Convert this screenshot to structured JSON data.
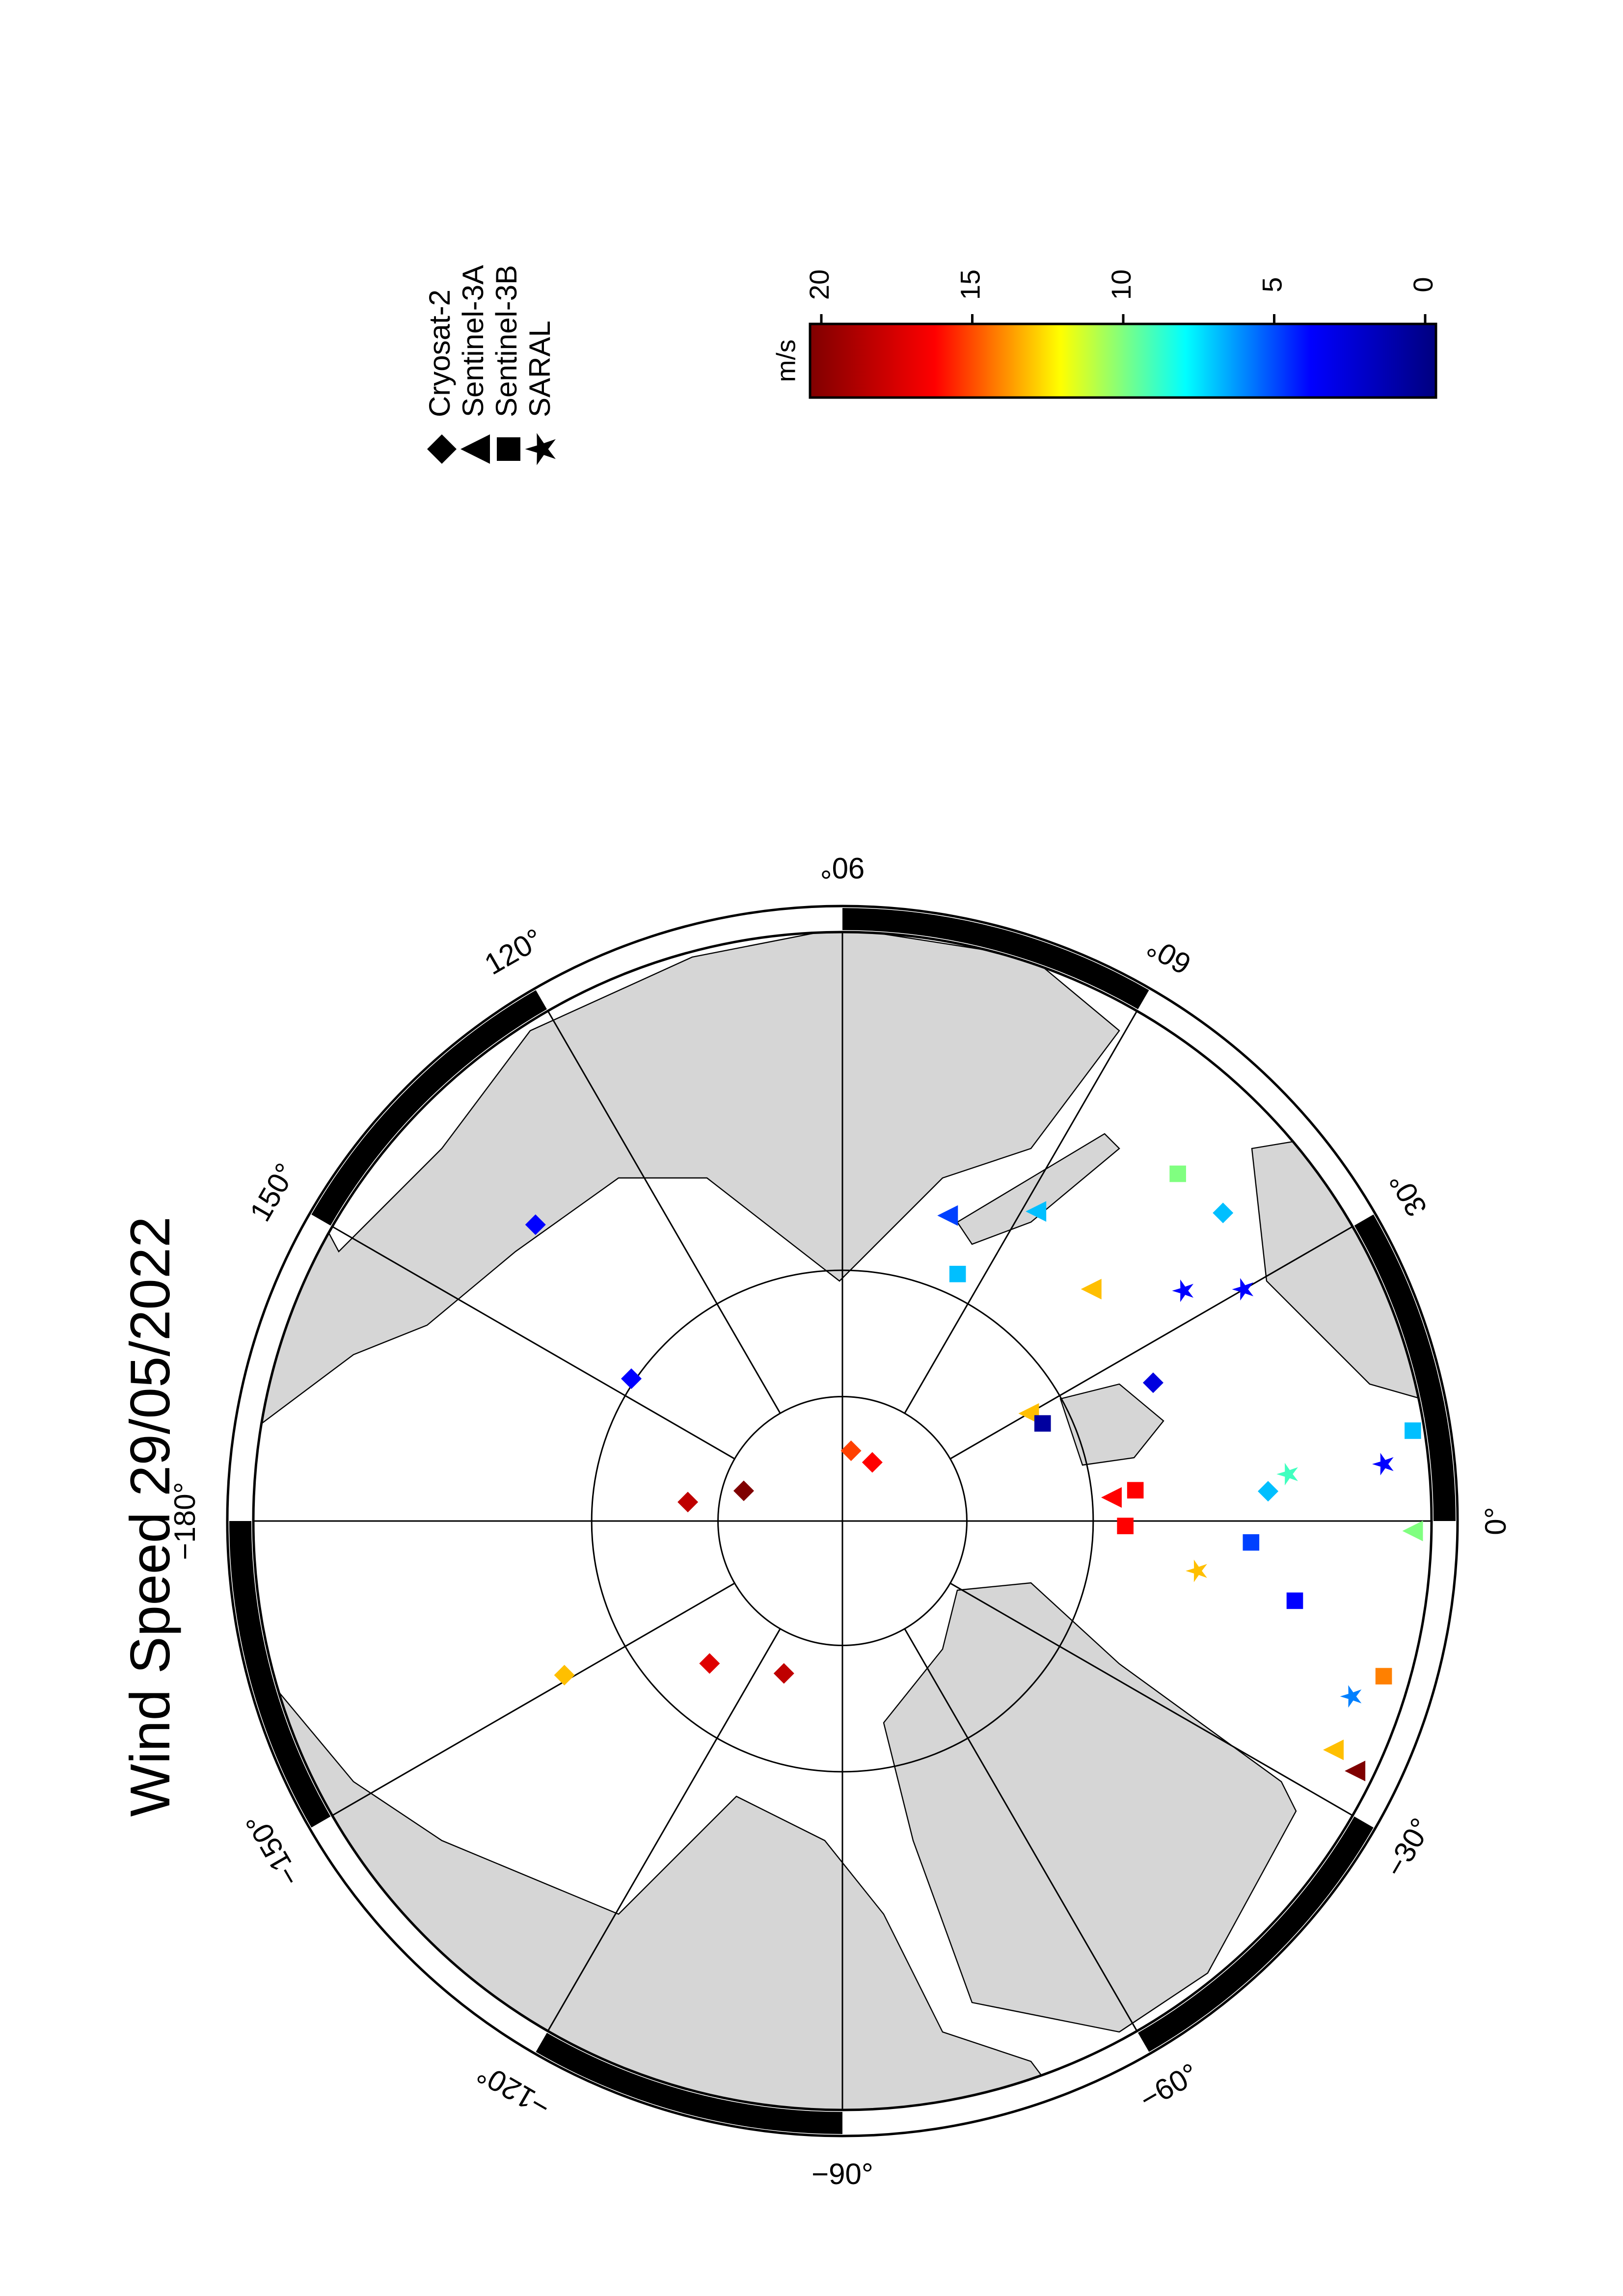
{
  "chart_data": {
    "type": "polar-map",
    "title": "Wind Speed 29/05/2022",
    "lat_min": 45,
    "parallels": [
      70,
      80
    ],
    "meridians": [
      {
        "value": 90,
        "label": "90°"
      },
      {
        "value": 60,
        "label": "60°"
      },
      {
        "value": 30,
        "label": "30°"
      },
      {
        "value": 0,
        "label": "0°"
      },
      {
        "value": -30,
        "label": "−30°"
      },
      {
        "value": -60,
        "label": "−60°"
      },
      {
        "value": -90,
        "label": "−90°"
      },
      {
        "value": -120,
        "label": "−120°"
      },
      {
        "value": -150,
        "label": "−150°"
      },
      {
        "value": -180,
        "label": "−180°"
      },
      {
        "value": 150,
        "label": "150°"
      },
      {
        "value": 120,
        "label": "120°"
      }
    ],
    "colorbar_label": "m/s",
    "clim": [
      0,
      20
    ],
    "cticks": [
      0,
      5,
      10,
      15,
      20
    ],
    "colormap": [
      "#00007f",
      "#0000ff",
      "#00ffff",
      "#ffff00",
      "#ff0000",
      "#7f0000"
    ],
    "series": [
      {
        "name": "Cryosat-2",
        "marker": "diamond",
        "lon": [
          163,
          173,
          83,
          63,
          -111,
          -133,
          -151,
          146,
          136,
          24,
          4,
          39
        ],
        "lat": [
          81.7,
          77.5,
          84.3,
          84.7,
          76.9,
          74.4,
          64.8,
          69.7,
          56.6,
          63.1,
          56.6,
          52
        ],
        "values": [
          20,
          18,
          15,
          16,
          18,
          17,
          13,
          4,
          4,
          3,
          7,
          7
        ]
      },
      {
        "name": "Sentinel-3A",
        "marker": "triangle",
        "lon": [
          71,
          30,
          5,
          -26,
          -25,
          43,
          58,
          -1
        ],
        "lat": [
          64.4,
          72.8,
          68.5,
          46.3,
          48.3,
          63.1,
          61.2,
          46.3
        ],
        "values": [
          5,
          13,
          16,
          20,
          13,
          13,
          7,
          10
        ]
      },
      {
        "name": "Sentinel-3B",
        "marker": "square",
        "lon": [
          26,
          6,
          -3,
          -16,
          46,
          65,
          -1,
          -10,
          9
        ],
        "lat": [
          72.2,
          66.6,
          57.9,
          46.8,
          52.5,
          68.3,
          67.5,
          54.2,
          45.8
        ],
        "values": [
          1,
          16,
          5,
          14,
          10,
          7,
          16,
          4,
          7
        ]
      },
      {
        "name": "SARAL",
        "marker": "star",
        "lon": [
          34,
          -19,
          -8,
          6,
          6,
          30
        ],
        "lat": [
          57.7,
          48.5,
          61.7,
          55,
          48.1,
          53.9
        ],
        "values": [
          4,
          6,
          13,
          9,
          4,
          4
        ]
      }
    ]
  }
}
